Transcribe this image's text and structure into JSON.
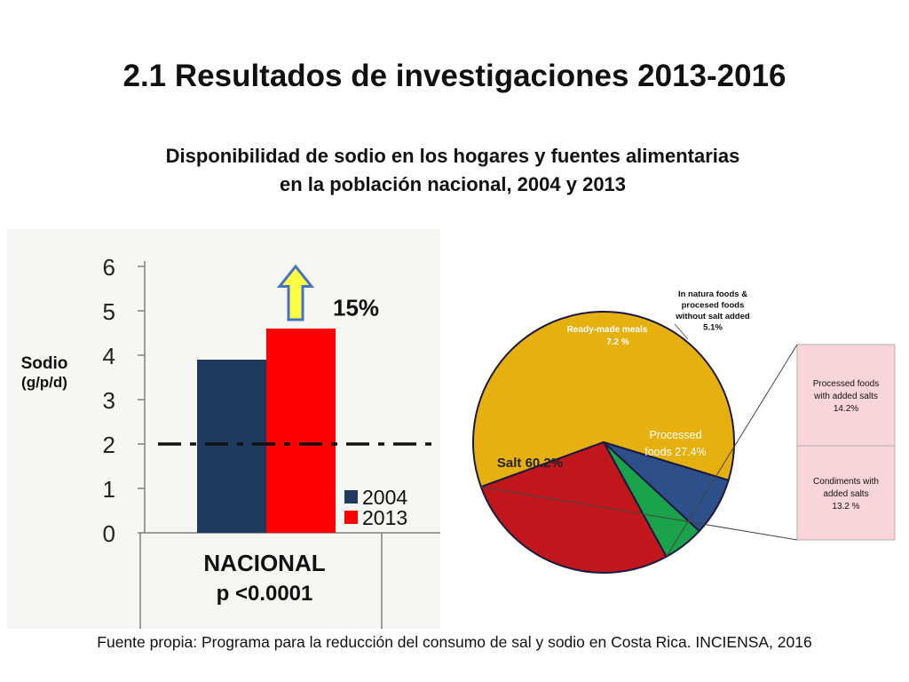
{
  "title": "2.1 Resultados de investigaciones 2013-2016",
  "subtitle_line1": "Disponibilidad de sodio en los hogares y fuentes alimentarias",
  "subtitle_line2": "en la población nacional, 2004 y 2013",
  "footer": "Fuente propia: Programa para la reducción del consumo de sal y sodio en Costa Rica. INCIENSA, 2016",
  "chart_data": [
    {
      "type": "bar",
      "ylabel": [
        "Sodio",
        "(g/p/d)"
      ],
      "ylim": [
        0,
        6
      ],
      "yticks": [
        0,
        1,
        2,
        3,
        4,
        5,
        6
      ],
      "categories": [
        "NACIONAL"
      ],
      "xnote": "p <0.0001",
      "series": [
        {
          "name": "2004",
          "values": [
            3.9
          ],
          "color": "#1e3a5f"
        },
        {
          "name": "2013",
          "values": [
            4.6
          ],
          "color": "#ff0000"
        }
      ],
      "reference_line": {
        "value": 2,
        "style": "dash-dot"
      },
      "annotation": {
        "text": "15%",
        "arrow": "up"
      },
      "legend": "bottom-right",
      "grid": false
    },
    {
      "type": "pie",
      "slices": [
        {
          "label": "Salt 60.2%",
          "value": 60.2,
          "color": "#e6b10f"
        },
        {
          "label_lines": [
            "Ready-made meals",
            "7.2 %"
          ],
          "value": 7.2,
          "color": "#2d4f8a"
        },
        {
          "label_lines": [
            "In natura foods &",
            "procesed foods",
            "without salt added",
            "5.1%"
          ],
          "value": 5.1,
          "color": "#1aa34a"
        },
        {
          "label_lines": [
            "Processed",
            "foods 27.4%"
          ],
          "value": 27.4,
          "color": "#c0161c"
        }
      ],
      "breakdown": {
        "parent": "Processed foods 27.4%",
        "items": [
          {
            "label_lines": [
              "Processed foods",
              "with added salts",
              "14.2%"
            ],
            "value": 14.2
          },
          {
            "label_lines": [
              "Condiments with",
              "added salts",
              "13.2 %"
            ],
            "value": 13.2
          }
        ],
        "color": "#f9d4d8"
      }
    }
  ]
}
